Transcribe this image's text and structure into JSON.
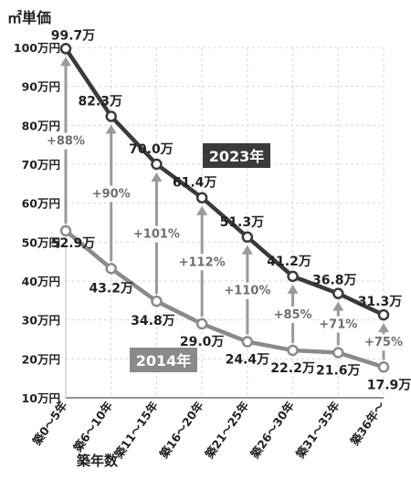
{
  "chart_data": {
    "type": "line",
    "ylabel": "㎡単価",
    "xlabel": "築年数",
    "ylim": [
      10,
      100
    ],
    "yticks": [
      10,
      20,
      30,
      40,
      50,
      60,
      70,
      80,
      90,
      100
    ],
    "ytick_labels": [
      "10万円",
      "20万円",
      "30万円",
      "40万円",
      "50万円",
      "60万円",
      "70万円",
      "80万円",
      "90万円",
      "100万円"
    ],
    "categories": [
      "築0～5年",
      "築6～10年",
      "築11～15年",
      "築16～20年",
      "築21～25年",
      "築26～30年",
      "築31～35年",
      "築36年～"
    ],
    "grid": true,
    "series": [
      {
        "name": "2023年",
        "color": "#3a3a3a",
        "values": [
          99.7,
          82.3,
          70.0,
          61.4,
          51.3,
          41.2,
          36.8,
          31.3
        ],
        "labels": [
          "99.7万",
          "82.3万",
          "70.0万",
          "61.4万",
          "51.3万",
          "41.2万",
          "36.8万",
          "31.3万"
        ]
      },
      {
        "name": "2014年",
        "color": "#8a8a8a",
        "values": [
          52.9,
          43.2,
          34.8,
          29.0,
          24.4,
          22.2,
          21.6,
          17.9
        ],
        "labels": [
          "52.9万",
          "43.2万",
          "34.8万",
          "29.0万",
          "24.4万",
          "22.2万",
          "21.6万",
          "17.9万"
        ]
      }
    ],
    "growth_labels": [
      "+88%",
      "+90%",
      "+101%",
      "+112%",
      "+110%",
      "+85%",
      "+71%",
      "+75%"
    ]
  }
}
